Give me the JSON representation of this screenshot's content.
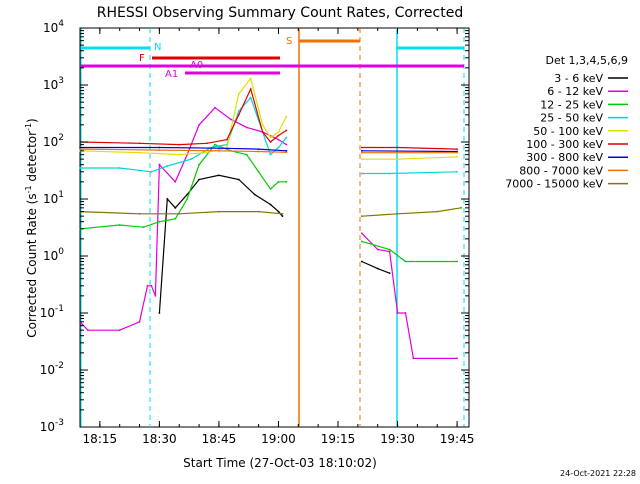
{
  "chart_data": {
    "type": "line",
    "title": "RHESSI Observing Summary Count Rates, Corrected",
    "xlabel": "Start Time (27-Oct-03 18:10:02)",
    "ylabel_main": "Corrected Count Rate (s",
    "ylabel_sup": "-1",
    "ylabel_mid": " detector",
    "ylabel_sup2": "-1",
    "ylabel_end": ")",
    "yscale": "log",
    "ylim": [
      0.001,
      10000
    ],
    "xlim": [
      "18:10",
      "19:48"
    ],
    "x_ticks": [
      "18:15",
      "18:30",
      "18:45",
      "19:00",
      "19:15",
      "19:30",
      "19:45"
    ],
    "y_ticks": [
      {
        "base": "10",
        "exp": "-3"
      },
      {
        "base": "10",
        "exp": "-2"
      },
      {
        "base": "10",
        "exp": "-1"
      },
      {
        "base": "10",
        "exp": "0"
      },
      {
        "base": "10",
        "exp": "1"
      },
      {
        "base": "10",
        "exp": "2"
      },
      {
        "base": "10",
        "exp": "3"
      },
      {
        "base": "10",
        "exp": "4"
      }
    ],
    "legend_title": "Det 1,3,4,5,6,9",
    "legend_placement": "right",
    "series": [
      {
        "name": "3 - 6 keV",
        "color": "#000000",
        "x": [
          "18:28",
          "18:29",
          "18:30",
          "18:32",
          "18:34",
          "18:37",
          "18:40",
          "18:45",
          "18:50",
          "18:54",
          "18:58",
          "19:00",
          "19:01",
          "19:01",
          "19:20",
          "19:21",
          "19:25",
          "19:28"
        ],
        "y": [
          null,
          null,
          0.1,
          10,
          7,
          12,
          22,
          26,
          22,
          12,
          8,
          6,
          5,
          null,
          null,
          0.8,
          0.6,
          0.5
        ]
      },
      {
        "name": "6 - 12 keV",
        "color": "#e000e0",
        "x": [
          "18:10",
          "18:12",
          "18:20",
          "18:25",
          "18:27",
          "18:28",
          "18:29",
          "18:30",
          "18:34",
          "18:37",
          "18:40",
          "18:44",
          "18:48",
          "18:52",
          "18:56",
          "19:00",
          "19:02",
          "19:20",
          "19:21",
          "19:25",
          "19:28",
          "19:30",
          "19:32",
          "19:34",
          "19:45"
        ],
        "y": [
          0.07,
          0.05,
          0.05,
          0.07,
          0.3,
          0.3,
          0.2,
          40,
          20,
          60,
          200,
          400,
          250,
          180,
          150,
          110,
          90,
          null,
          2.5,
          1.3,
          1.2,
          0.1,
          0.1,
          0.016,
          0.016
        ]
      },
      {
        "name": "12 - 25 keV",
        "color": "#00cc00",
        "x": [
          "18:10",
          "18:20",
          "18:26",
          "18:30",
          "18:34",
          "18:37",
          "18:40",
          "18:44",
          "18:48",
          "18:52",
          "18:55",
          "18:58",
          "19:00",
          "19:02",
          "19:20",
          "19:21",
          "19:28",
          "19:32",
          "19:45"
        ],
        "y": [
          3,
          3.5,
          3.2,
          4,
          4.5,
          10,
          40,
          90,
          70,
          60,
          30,
          15,
          20,
          20,
          null,
          1.8,
          1.3,
          0.8,
          0.8
        ]
      },
      {
        "name": "25 - 50 keV",
        "color": "#00d8d8",
        "x": [
          "18:10",
          "18:20",
          "18:28",
          "18:32",
          "18:38",
          "18:43",
          "18:47",
          "18:50",
          "18:53",
          "18:56",
          "18:58",
          "19:00",
          "19:02",
          "19:20",
          "19:21",
          "19:28",
          "19:45"
        ],
        "y": [
          35,
          35,
          30,
          38,
          50,
          80,
          90,
          350,
          600,
          150,
          60,
          80,
          120,
          null,
          28,
          28,
          30
        ]
      },
      {
        "name": "50 - 100 keV",
        "color": "#e0e000",
        "x": [
          "18:10",
          "18:25",
          "18:35",
          "18:42",
          "18:47",
          "18:50",
          "18:53",
          "18:56",
          "18:58",
          "19:00",
          "19:02",
          "19:20",
          "19:21",
          "19:30",
          "19:45"
        ],
        "y": [
          70,
          65,
          60,
          65,
          80,
          700,
          1300,
          200,
          120,
          150,
          280,
          null,
          50,
          50,
          55
        ]
      },
      {
        "name": "100 - 300 keV",
        "color": "#e00000",
        "x": [
          "18:10",
          "18:25",
          "18:35",
          "18:42",
          "18:47",
          "18:50",
          "18:53",
          "18:56",
          "18:58",
          "19:00",
          "19:02",
          "19:20",
          "19:21",
          "19:30",
          "19:45"
        ],
        "y": [
          100,
          95,
          90,
          95,
          110,
          300,
          850,
          150,
          100,
          130,
          160,
          null,
          80,
          80,
          75
        ]
      },
      {
        "name": "300 - 800 keV",
        "color": "#0000e0",
        "x": [
          "18:10",
          "18:30",
          "18:45",
          "18:55",
          "19:02",
          "19:20",
          "19:21",
          "19:45"
        ],
        "y": [
          80,
          80,
          78,
          75,
          70,
          null,
          70,
          68
        ]
      },
      {
        "name": "800 - 7000 keV",
        "color": "#f07000",
        "x": [
          "18:10",
          "18:30",
          "18:45",
          "18:55",
          "19:02",
          "19:20",
          "19:21",
          "19:45"
        ],
        "y": [
          75,
          72,
          70,
          68,
          66,
          null,
          65,
          65
        ]
      },
      {
        "name": "7000 - 15000 keV",
        "color": "#807800",
        "x": [
          "18:10",
          "18:25",
          "18:35",
          "18:45",
          "18:55",
          "19:01",
          "19:20",
          "19:21",
          "19:30",
          "19:40",
          "19:46"
        ],
        "y": [
          6,
          5.5,
          5.5,
          6,
          6,
          5.5,
          null,
          5,
          5.5,
          6,
          7
        ]
      }
    ],
    "annotations": [
      {
        "label": "N",
        "color": "#00e0f0"
      },
      {
        "label": "F",
        "color": "#e00000"
      },
      {
        "label": "A0",
        "color": "#e000e0"
      },
      {
        "label": "A1",
        "color": "#e000e0"
      },
      {
        "label": "S",
        "color": "#f07000"
      }
    ],
    "timestamp": "24-Oct-2021 22:28"
  }
}
